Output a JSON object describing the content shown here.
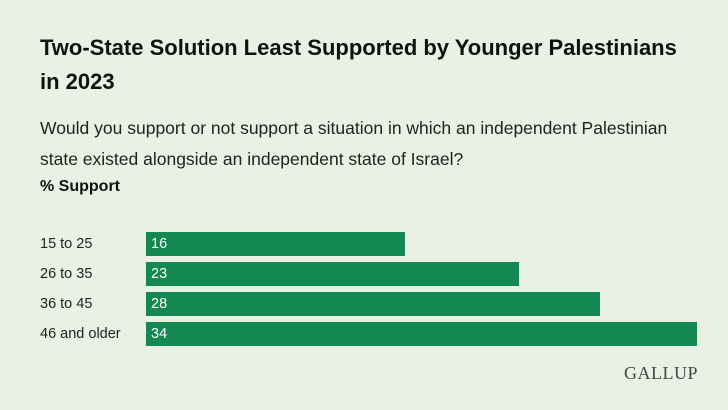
{
  "title": "Two-State Solution Least Supported by Younger Palestinians in 2023",
  "subtitle": "Would you support or not support a situation in which an independent Palestinian state existed alongside an independent state of Israel?",
  "measure_label": "% Support",
  "logo": "GALLUP",
  "colors": {
    "bar": "#138850",
    "background": "#e8f1e3"
  },
  "chart_data": {
    "type": "bar",
    "orientation": "horizontal",
    "title": "Two-State Solution Least Supported by Younger Palestinians in 2023",
    "categories": [
      "15 to 25",
      "26 to 35",
      "36 to 45",
      "46 and older"
    ],
    "values": [
      16,
      23,
      28,
      34
    ],
    "value_labels": [
      "16",
      "23",
      "28",
      "34"
    ],
    "xlabel": "",
    "ylabel": "",
    "xlim": [
      0,
      34
    ],
    "grid": false,
    "legend": "none"
  }
}
